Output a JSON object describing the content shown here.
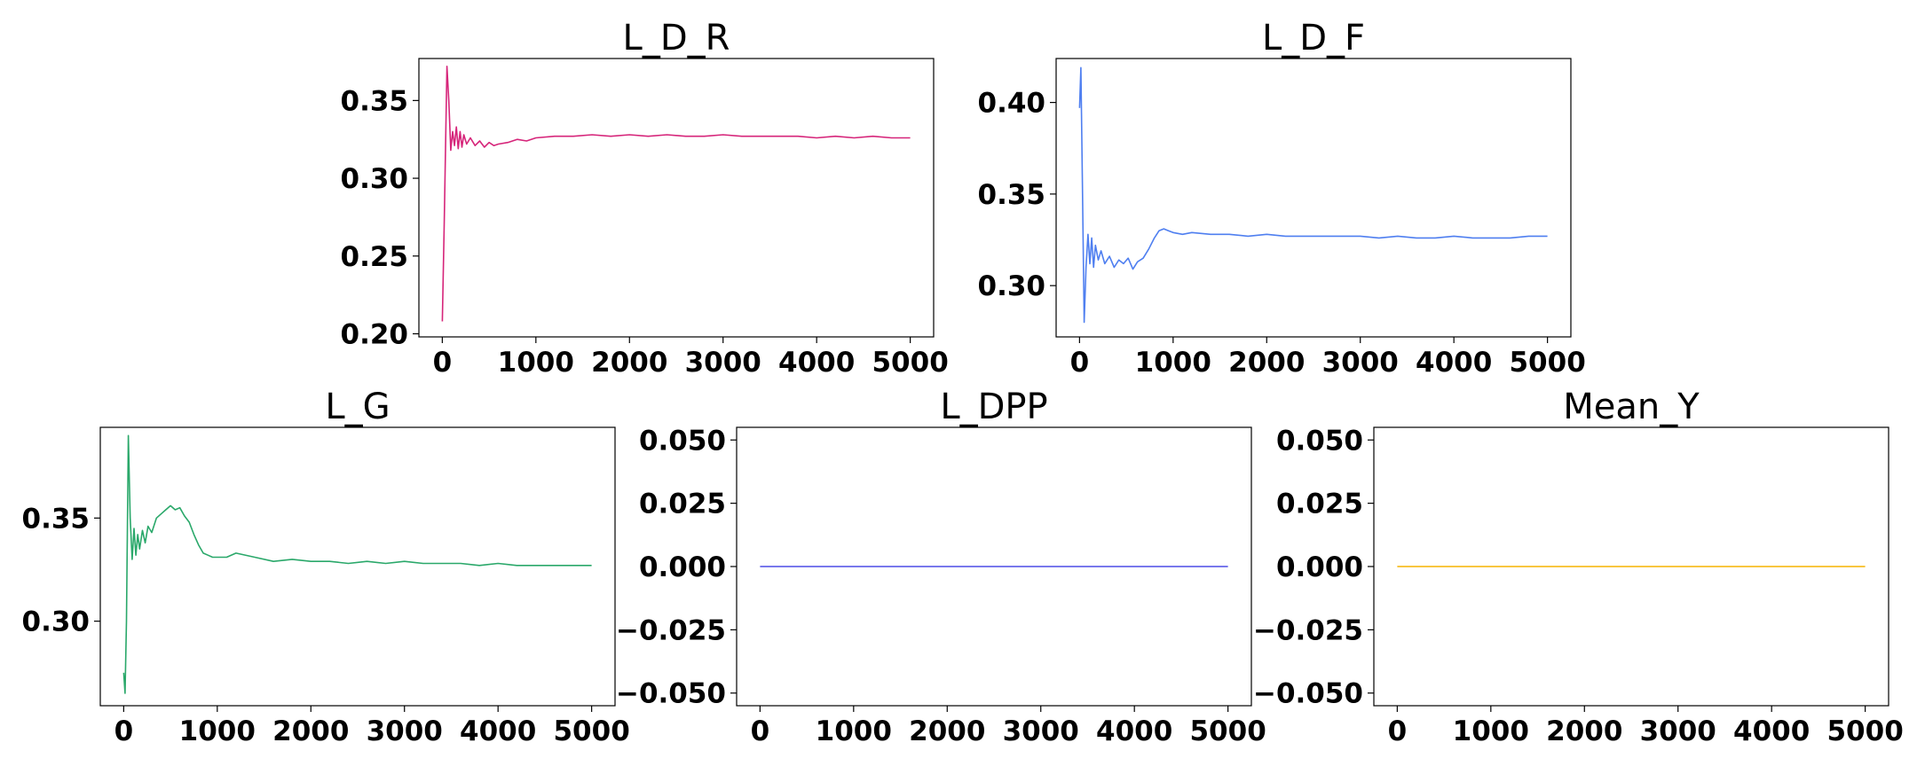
{
  "chart_data": [
    {
      "type": "line",
      "title": "L_D_R",
      "xlabel": "",
      "ylabel": "",
      "xlim": [
        -250,
        5250
      ],
      "ylim": [
        0.198,
        0.377
      ],
      "xticks": [
        0,
        1000,
        2000,
        3000,
        4000,
        5000
      ],
      "xtick_labels": [
        "0",
        "1000",
        "2000",
        "3000",
        "4000",
        "5000"
      ],
      "yticks": [
        0.2,
        0.25,
        0.3,
        0.35
      ],
      "ytick_labels": [
        "0.20",
        "0.25",
        "0.30",
        "0.35"
      ],
      "grid": false,
      "series": [
        {
          "color": "#d6257a",
          "x": [
            0,
            20,
            50,
            70,
            90,
            110,
            130,
            150,
            170,
            190,
            210,
            230,
            260,
            300,
            350,
            400,
            450,
            500,
            550,
            600,
            700,
            800,
            900,
            1000,
            1200,
            1400,
            1600,
            1800,
            2000,
            2200,
            2400,
            2600,
            2800,
            3000,
            3200,
            3400,
            3600,
            3800,
            4000,
            4200,
            4400,
            4600,
            4800,
            5000
          ],
          "y": [
            0.208,
            0.27,
            0.372,
            0.35,
            0.318,
            0.33,
            0.321,
            0.333,
            0.319,
            0.33,
            0.32,
            0.328,
            0.322,
            0.326,
            0.321,
            0.324,
            0.32,
            0.323,
            0.321,
            0.322,
            0.323,
            0.325,
            0.324,
            0.326,
            0.327,
            0.327,
            0.328,
            0.327,
            0.328,
            0.327,
            0.328,
            0.327,
            0.327,
            0.328,
            0.327,
            0.327,
            0.327,
            0.327,
            0.326,
            0.327,
            0.326,
            0.327,
            0.326,
            0.326
          ]
        }
      ]
    },
    {
      "type": "line",
      "title": "L_D_F",
      "xlabel": "",
      "ylabel": "",
      "xlim": [
        -250,
        5250
      ],
      "ylim": [
        0.272,
        0.424
      ],
      "xticks": [
        0,
        1000,
        2000,
        3000,
        4000,
        5000
      ],
      "xtick_labels": [
        "0",
        "1000",
        "2000",
        "3000",
        "4000",
        "5000"
      ],
      "yticks": [
        0.3,
        0.35,
        0.4
      ],
      "ytick_labels": [
        "0.30",
        "0.35",
        "0.40"
      ],
      "grid": false,
      "series": [
        {
          "color": "#4f7ff0",
          "x": [
            0,
            15,
            30,
            50,
            70,
            90,
            110,
            130,
            150,
            170,
            200,
            230,
            270,
            320,
            370,
            420,
            470,
            520,
            570,
            620,
            680,
            740,
            800,
            850,
            900,
            950,
            1000,
            1100,
            1200,
            1400,
            1600,
            1800,
            2000,
            2200,
            2400,
            2600,
            2800,
            3000,
            3200,
            3400,
            3600,
            3800,
            4000,
            4200,
            4400,
            4600,
            4800,
            5000
          ],
          "y": [
            0.397,
            0.419,
            0.36,
            0.28,
            0.31,
            0.328,
            0.312,
            0.326,
            0.31,
            0.322,
            0.314,
            0.319,
            0.312,
            0.316,
            0.31,
            0.314,
            0.312,
            0.315,
            0.309,
            0.313,
            0.315,
            0.32,
            0.326,
            0.33,
            0.331,
            0.33,
            0.329,
            0.328,
            0.329,
            0.328,
            0.328,
            0.327,
            0.328,
            0.327,
            0.327,
            0.327,
            0.327,
            0.327,
            0.326,
            0.327,
            0.326,
            0.326,
            0.327,
            0.326,
            0.326,
            0.326,
            0.327,
            0.327
          ]
        }
      ]
    },
    {
      "type": "line",
      "title": "L_G",
      "xlabel": "",
      "ylabel": "",
      "xlim": [
        -250,
        5250
      ],
      "ylim": [
        0.259,
        0.394
      ],
      "xticks": [
        0,
        1000,
        2000,
        3000,
        4000,
        5000
      ],
      "xtick_labels": [
        "0",
        "1000",
        "2000",
        "3000",
        "4000",
        "5000"
      ],
      "yticks": [
        0.3,
        0.35
      ],
      "ytick_labels": [
        "0.30",
        "0.35"
      ],
      "grid": false,
      "series": [
        {
          "color": "#2aa86a",
          "x": [
            0,
            15,
            30,
            50,
            70,
            90,
            110,
            130,
            150,
            170,
            200,
            230,
            260,
            300,
            350,
            400,
            450,
            500,
            550,
            600,
            650,
            700,
            750,
            800,
            850,
            900,
            950,
            1000,
            1100,
            1200,
            1400,
            1600,
            1800,
            2000,
            2200,
            2400,
            2600,
            2800,
            3000,
            3200,
            3400,
            3600,
            3800,
            4000,
            4200,
            4400,
            4600,
            4800,
            5000
          ],
          "y": [
            0.275,
            0.265,
            0.3,
            0.39,
            0.35,
            0.33,
            0.345,
            0.332,
            0.342,
            0.335,
            0.344,
            0.338,
            0.346,
            0.343,
            0.35,
            0.352,
            0.354,
            0.356,
            0.354,
            0.355,
            0.351,
            0.348,
            0.342,
            0.337,
            0.333,
            0.332,
            0.331,
            0.331,
            0.331,
            0.333,
            0.331,
            0.329,
            0.33,
            0.329,
            0.329,
            0.328,
            0.329,
            0.328,
            0.329,
            0.328,
            0.328,
            0.328,
            0.327,
            0.328,
            0.327,
            0.327,
            0.327,
            0.327,
            0.327
          ]
        }
      ]
    },
    {
      "type": "line",
      "title": "L_DPP",
      "xlabel": "",
      "ylabel": "",
      "xlim": [
        -250,
        5250
      ],
      "ylim": [
        -0.055,
        0.055
      ],
      "xticks": [
        0,
        1000,
        2000,
        3000,
        4000,
        5000
      ],
      "xtick_labels": [
        "0",
        "1000",
        "2000",
        "3000",
        "4000",
        "5000"
      ],
      "yticks": [
        -0.05,
        -0.025,
        0.0,
        0.025,
        0.05
      ],
      "ytick_labels": [
        "−0.050",
        "−0.025",
        "0.000",
        "0.025",
        "0.050"
      ],
      "grid": false,
      "series": [
        {
          "color": "#4b4be6",
          "x": [
            0,
            5000
          ],
          "y": [
            0,
            0
          ]
        }
      ]
    },
    {
      "type": "line",
      "title": "Mean_Y",
      "xlabel": "",
      "ylabel": "",
      "xlim": [
        -250,
        5250
      ],
      "ylim": [
        -0.055,
        0.055
      ],
      "xticks": [
        0,
        1000,
        2000,
        3000,
        4000,
        5000
      ],
      "xtick_labels": [
        "0",
        "1000",
        "2000",
        "3000",
        "4000",
        "5000"
      ],
      "yticks": [
        -0.05,
        -0.025,
        0.0,
        0.025,
        0.05
      ],
      "ytick_labels": [
        "−0.050",
        "−0.025",
        "0.000",
        "0.025",
        "0.050"
      ],
      "grid": false,
      "series": [
        {
          "color": "#f5b400",
          "x": [
            0,
            5000
          ],
          "y": [
            0,
            0
          ]
        }
      ]
    }
  ]
}
